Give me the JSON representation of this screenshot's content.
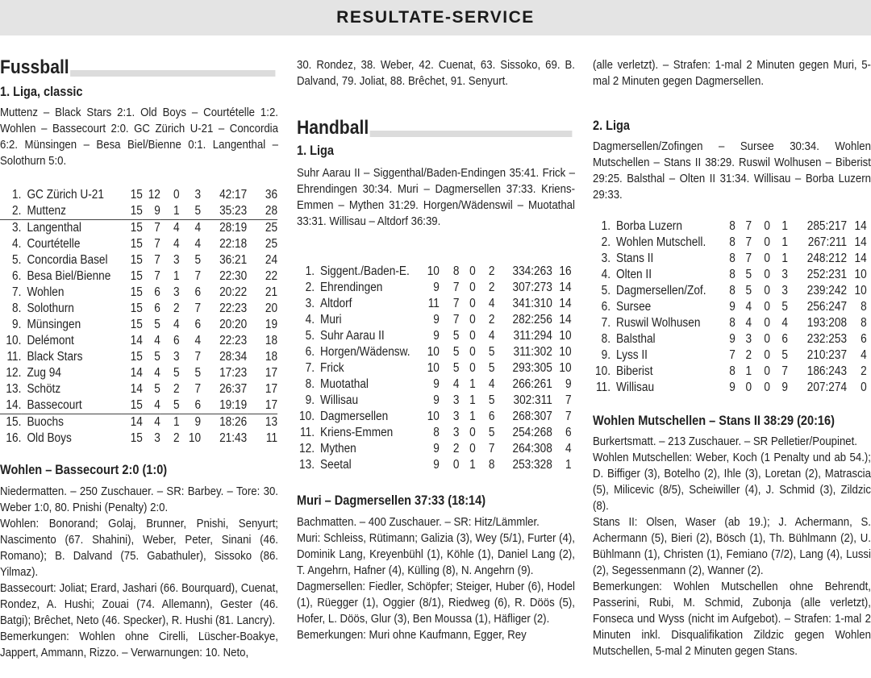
{
  "masthead": {
    "title": "RESULTATE-SERVICE"
  },
  "football": {
    "section_title": "Fussball",
    "league_title": "1. Liga, classic",
    "results": "Muttenz – Black Stars 2:1. Old Boys – Courtételle 1:2. Wohlen – Bassecourt 2:0. GC Zürich U-21 – Concor­dia 6:2. Münsingen – Besa Biel/Bienne 0:1. Langenthal – Solothurn 5:0.",
    "table": [
      [
        "1.",
        "GC Zürich U-21",
        "15",
        "12",
        "0",
        "3",
        "42:17",
        "36"
      ],
      [
        "2.",
        "Muttenz",
        "15",
        "9",
        "1",
        "5",
        "35:23",
        "28"
      ],
      [
        "3.",
        "Langenthal",
        "15",
        "7",
        "4",
        "4",
        "28:19",
        "25"
      ],
      [
        "4.",
        "Courtételle",
        "15",
        "7",
        "4",
        "4",
        "22:18",
        "25"
      ],
      [
        "5.",
        "Concordia Basel",
        "15",
        "7",
        "3",
        "5",
        "36:21",
        "24"
      ],
      [
        "6.",
        "Besa Biel/Bienne",
        "15",
        "7",
        "1",
        "7",
        "22:30",
        "22"
      ],
      [
        "7.",
        "Wohlen",
        "15",
        "6",
        "3",
        "6",
        "20:22",
        "21"
      ],
      [
        "8.",
        "Solothurn",
        "15",
        "6",
        "2",
        "7",
        "22:23",
        "20"
      ],
      [
        "9.",
        "Münsingen",
        "15",
        "5",
        "4",
        "6",
        "20:20",
        "19"
      ],
      [
        "10.",
        "Delémont",
        "14",
        "4",
        "6",
        "4",
        "22:23",
        "18"
      ],
      [
        "11.",
        "Black Stars",
        "15",
        "5",
        "3",
        "7",
        "28:34",
        "18"
      ],
      [
        "12.",
        "Zug 94",
        "14",
        "4",
        "5",
        "5",
        "17:23",
        "17"
      ],
      [
        "13.",
        "Schötz",
        "14",
        "5",
        "2",
        "7",
        "26:37",
        "17"
      ],
      [
        "14.",
        "Bassecourt",
        "15",
        "4",
        "5",
        "6",
        "19:19",
        "17"
      ],
      [
        "15.",
        "Buochs",
        "14",
        "4",
        "1",
        "9",
        "18:26",
        "13"
      ],
      [
        "16.",
        "Old Boys",
        "15",
        "3",
        "2",
        "10",
        "21:43",
        "11"
      ]
    ],
    "match": {
      "title": "Wohlen – Bassecourt 2:0 (1:0)",
      "paragraphs": [
        "Niedermatten. – 250 Zuschauer. – SR: Barbey. – Tore: 30. Weber 1:0, 80. Pnishi (Penalty) 2:0.",
        "Wohlen: Bonorand; Golaj, Brunner, Pnishi, Senyurt; Nascimento (67. Shahini), Weber, Peter, Sinani (46. Romano); B. Dalvand (75. Gabathuler), Sissoko (86. Yilmaz).",
        "Bassecourt: Joliat; Erard, Jashari (66. Bourquard), Cuenat, Rondez, A. Hushi; Zouai (74. Allemann), Ge­ster (46. Batgi); Brêchet, Neto (46. Specker), R. Hus­hi (81. Lancry).",
        "Bemerkungen: Wohlen ohne Cirelli, Lüscher-Boakye, Jappert, Ammann, Rizzo. – Verwarnungen: 10. Neto,"
      ],
      "continuation": "30. Rondez, 38. Weber, 42. Cuenat, 63. Sissoko, 69. B. Dalvand, 79. Joliat, 88. Brêchet, 91. Senyurt."
    }
  },
  "handball": {
    "section_title": "Handball",
    "liga1": {
      "title": "1. Liga",
      "results": "Suhr Aarau II – Siggenthal/Baden-Endingen 35:41. Frick – Ehrendingen 30:34. Muri – Dagmersellen 37:33. Kriens-Emmen – Mythen 31:29. Horgen/​Wädenswil – Muotathal 33:31. Willisau – Altdorf 36:39.",
      "table": [
        [
          "1.",
          "Siggent./Baden-E.",
          "10",
          "8",
          "0",
          "2",
          "334:263",
          "16"
        ],
        [
          "2.",
          "Ehrendingen",
          "9",
          "7",
          "0",
          "2",
          "307:273",
          "14"
        ],
        [
          "3.",
          "Altdorf",
          "11",
          "7",
          "0",
          "4",
          "341:310",
          "14"
        ],
        [
          "4.",
          "Muri",
          "9",
          "7",
          "0",
          "2",
          "282:256",
          "14"
        ],
        [
          "5.",
          "Suhr Aarau II",
          "9",
          "5",
          "0",
          "4",
          "311:294",
          "10"
        ],
        [
          "6.",
          "Horgen/Wädensw.",
          "10",
          "5",
          "0",
          "5",
          "311:302",
          "10"
        ],
        [
          "7.",
          "Frick",
          "10",
          "5",
          "0",
          "5",
          "293:305",
          "10"
        ],
        [
          "8.",
          "Muotathal",
          "9",
          "4",
          "1",
          "4",
          "266:261",
          "9"
        ],
        [
          "9.",
          "Willisau",
          "9",
          "3",
          "1",
          "5",
          "302:311",
          "7"
        ],
        [
          "10.",
          "Dagmersellen",
          "10",
          "3",
          "1",
          "6",
          "268:307",
          "7"
        ],
        [
          "11.",
          "Kriens-Emmen",
          "8",
          "3",
          "0",
          "5",
          "254:268",
          "6"
        ],
        [
          "12.",
          "Mythen",
          "9",
          "2",
          "0",
          "7",
          "264:308",
          "4"
        ],
        [
          "13.",
          "Seetal",
          "9",
          "0",
          "1",
          "8",
          "253:328",
          "1"
        ]
      ],
      "match": {
        "title": "Muri – Dagmersellen 37:33 (18:14)",
        "paragraphs": [
          "Bachmatten. – 400 Zuschauer. – SR: Hitz/Lämmler.",
          "Muri: Schleiss, Rütimann; Galizia (3), Wey (5/1), Furter (4), Dominik Lang, Kreyenbühl (1), Köhle (1), Daniel Lang (2), T. Angehrn, Hafner (4), Külling (8), N. Angehrn (9).",
          "Dagmersellen: Fiedler, Schöpfer; Steiger, Huber (6), Hodel (1), Rüegger (1), Oggier (8/1), Riedweg (6), R. Döös (5), Hofer, L. Döös, Glur (3), Ben Moussa (1), Häfliger (2).",
          "Bemerkungen: Muri ohne Kaufmann, Egger, Rey"
        ],
        "continuation": "(alle verletzt). – Strafen: 1-mal 2 Minuten gegen Muri, 5-mal 2 Minuten gegen Dagmersellen."
      }
    },
    "liga2": {
      "title": "2. Liga",
      "results": "Dagmersellen/Zofingen – Sursee 30:34. Wohlen Mutschellen – Stans II 38:29. Ruswil Wolhusen – Biberist 29:25. Balsthal – Olten II 31:34. Willisau – Borba Luzern 29:33.",
      "table": [
        [
          "1.",
          "Borba Luzern",
          "8",
          "7",
          "0",
          "1",
          "285:217",
          "14"
        ],
        [
          "2.",
          "Wohlen Mutschell.",
          "8",
          "7",
          "0",
          "1",
          "267:211",
          "14"
        ],
        [
          "3.",
          "Stans II",
          "8",
          "7",
          "0",
          "1",
          "248:212",
          "14"
        ],
        [
          "4.",
          "Olten II",
          "8",
          "5",
          "0",
          "3",
          "252:231",
          "10"
        ],
        [
          "5.",
          "Dagmersellen/Zof.",
          "8",
          "5",
          "0",
          "3",
          "239:242",
          "10"
        ],
        [
          "6.",
          "Sursee",
          "9",
          "4",
          "0",
          "5",
          "256:247",
          "8"
        ],
        [
          "7.",
          "Ruswil Wolhusen",
          "8",
          "4",
          "0",
          "4",
          "193:208",
          "8"
        ],
        [
          "8.",
          "Balsthal",
          "9",
          "3",
          "0",
          "6",
          "232:253",
          "6"
        ],
        [
          "9.",
          "Lyss II",
          "7",
          "2",
          "0",
          "5",
          "210:237",
          "4"
        ],
        [
          "10.",
          "Biberist",
          "8",
          "1",
          "0",
          "7",
          "186:243",
          "2"
        ],
        [
          "11.",
          "Willisau",
          "9",
          "0",
          "0",
          "9",
          "207:274",
          "0"
        ]
      ],
      "match": {
        "title": "Wohlen Mutschellen – Stans II 38:29 (20:16)",
        "paragraphs": [
          "Burkertsmatt. – 213 Zuschauer. – SR Pelletier/Poupi­net.",
          "Wohlen Mutschellen: Weber, Koch (1 Penalty und ab 54.); D. Biffiger (3), Botelho (2), Ihle (3), Loretan (2), Matrascia (5), Milicevic (8/5), Scheiwiller (4), J. Schmid (3), Zildzic (8).",
          "Stans II: Olsen, Waser (ab 19.); J. Achermann, S. Achermann (5), Bieri (2), Bösch (1), Th. Bühlmann (2), U. Bühlmann (1), Christen (1), Femiano (7/2), Lang (4), Lussi (2), Segessenmann (2), Wanner (2).",
          "Bemerkungen: Wohlen Mutschellen ohne Behrendt, Passerini, Rubi, M. Schmid, Zubonja (alle verletzt), Fonseca und Wyss (nicht im Aufgebot). – Strafen: 1-mal 2 Minuten inkl. Disqualifikation Zildzic gegen Wohlen Mutschellen, 5-mal 2 Minuten gegen Stans."
        ]
      }
    }
  }
}
